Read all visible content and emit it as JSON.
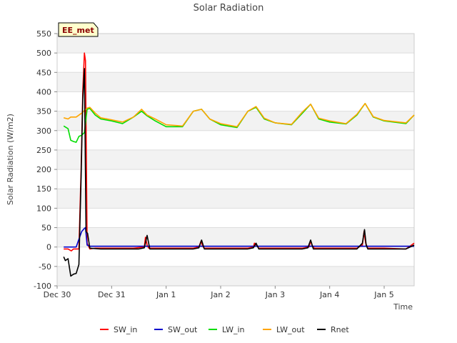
{
  "chart_data": {
    "type": "line",
    "title": "Solar Radiation",
    "xlabel": "Time",
    "ylabel": "Solar Radiation (W/m2)",
    "badge": "EE_met",
    "ylim": [
      -100,
      550
    ],
    "yticks": [
      -100,
      -50,
      0,
      50,
      100,
      150,
      200,
      250,
      300,
      350,
      400,
      450,
      500,
      550
    ],
    "xlim": [
      0,
      6.55
    ],
    "xticks": [
      {
        "x": 0,
        "label": "Dec 30"
      },
      {
        "x": 1,
        "label": "Dec 31"
      },
      {
        "x": 2,
        "label": "Jan 1"
      },
      {
        "x": 3,
        "label": "Jan 2"
      },
      {
        "x": 4,
        "label": "Jan 3"
      },
      {
        "x": 5,
        "label": "Jan 4"
      },
      {
        "x": 6,
        "label": "Jan 5"
      }
    ],
    "grid": true,
    "legend_position": "bottom",
    "series": [
      {
        "name": "SW_in",
        "color": "#ff0000",
        "x": [
          0.12,
          0.2,
          0.26,
          0.3,
          0.4,
          0.44,
          0.47,
          0.5,
          0.52,
          0.55,
          0.6,
          0.7,
          0.8,
          1.0,
          1.4,
          1.6,
          1.62,
          1.65,
          1.68,
          1.8,
          2.0,
          2.5,
          2.6,
          2.64,
          2.67,
          2.7,
          2.8,
          3.0,
          3.5,
          3.6,
          3.62,
          3.66,
          3.7,
          3.8,
          4.0,
          4.5,
          4.62,
          4.65,
          4.68,
          4.72,
          4.8,
          5.0,
          5.5,
          5.6,
          5.63,
          5.66,
          5.7,
          5.8,
          6.0,
          6.4,
          6.55
        ],
        "y": [
          -5,
          -5,
          -10,
          -5,
          -5,
          200,
          400,
          500,
          480,
          10,
          -5,
          -3,
          -3,
          -3,
          -3,
          0,
          25,
          5,
          -3,
          -3,
          -3,
          -3,
          0,
          15,
          2,
          -3,
          -3,
          -3,
          -3,
          0,
          10,
          4,
          -3,
          -3,
          -3,
          -3,
          0,
          15,
          3,
          -3,
          -3,
          -3,
          -3,
          5,
          40,
          10,
          -3,
          -3,
          -3,
          -5,
          10
        ]
      },
      {
        "name": "SW_out",
        "color": "#0000cc",
        "x": [
          0.12,
          0.25,
          0.35,
          0.4,
          0.45,
          0.5,
          0.52,
          0.55,
          0.6,
          0.8,
          1.0,
          1.5,
          2.0,
          2.5,
          3.0,
          3.5,
          4.0,
          4.5,
          5.0,
          5.5,
          6.0,
          6.4,
          6.55
        ],
        "y": [
          0,
          0,
          0,
          20,
          40,
          48,
          50,
          5,
          2,
          2,
          2,
          2,
          2,
          2,
          2,
          2,
          2,
          2,
          2,
          2,
          2,
          2,
          2
        ]
      },
      {
        "name": "LW_in",
        "color": "#00dd00",
        "x": [
          0.12,
          0.2,
          0.25,
          0.3,
          0.35,
          0.4,
          0.45,
          0.5,
          0.55,
          0.6,
          0.7,
          0.8,
          1.0,
          1.2,
          1.4,
          1.55,
          1.65,
          1.8,
          2.0,
          2.3,
          2.5,
          2.65,
          2.8,
          3.0,
          3.3,
          3.5,
          3.65,
          3.8,
          4.0,
          4.3,
          4.5,
          4.65,
          4.8,
          5.0,
          5.3,
          5.5,
          5.65,
          5.8,
          6.0,
          6.4,
          6.55
        ],
        "y": [
          312,
          305,
          275,
          272,
          270,
          285,
          288,
          295,
          355,
          357,
          340,
          330,
          325,
          318,
          335,
          350,
          338,
          325,
          310,
          310,
          350,
          355,
          330,
          315,
          308,
          350,
          360,
          330,
          320,
          315,
          345,
          368,
          330,
          322,
          317,
          340,
          370,
          335,
          325,
          318,
          340
        ]
      },
      {
        "name": "LW_out",
        "color": "#ffa500",
        "x": [
          0.12,
          0.2,
          0.25,
          0.35,
          0.45,
          0.55,
          0.6,
          0.7,
          0.8,
          1.0,
          1.2,
          1.4,
          1.55,
          1.65,
          1.8,
          2.0,
          2.3,
          2.5,
          2.65,
          2.8,
          3.0,
          3.3,
          3.5,
          3.65,
          3.8,
          4.0,
          4.3,
          4.5,
          4.65,
          4.8,
          5.0,
          5.3,
          5.5,
          5.65,
          5.8,
          6.0,
          6.4,
          6.55
        ],
        "y": [
          333,
          330,
          335,
          335,
          345,
          358,
          360,
          345,
          333,
          328,
          322,
          335,
          355,
          340,
          330,
          315,
          312,
          350,
          355,
          330,
          318,
          310,
          350,
          362,
          332,
          320,
          316,
          348,
          368,
          332,
          325,
          318,
          342,
          370,
          336,
          326,
          320,
          340
        ]
      },
      {
        "name": "Rnet",
        "color": "#000000",
        "x": [
          0.12,
          0.15,
          0.2,
          0.25,
          0.3,
          0.35,
          0.4,
          0.44,
          0.47,
          0.5,
          0.53,
          0.56,
          0.6,
          0.8,
          1.0,
          1.5,
          1.6,
          1.65,
          1.7,
          2.0,
          2.5,
          2.6,
          2.65,
          2.7,
          3.0,
          3.5,
          3.6,
          3.65,
          3.7,
          4.0,
          4.5,
          4.6,
          4.65,
          4.7,
          5.0,
          5.5,
          5.6,
          5.64,
          5.67,
          5.7,
          6.0,
          6.4,
          6.55
        ],
        "y": [
          -25,
          -35,
          -30,
          -75,
          -70,
          -68,
          -45,
          180,
          380,
          460,
          40,
          35,
          -3,
          -5,
          -5,
          -5,
          -2,
          30,
          -5,
          -5,
          -5,
          -2,
          18,
          -5,
          -5,
          -5,
          -2,
          10,
          -5,
          -5,
          -5,
          -2,
          18,
          -5,
          -5,
          -5,
          10,
          45,
          5,
          -5,
          -5,
          -5,
          5
        ]
      }
    ]
  }
}
